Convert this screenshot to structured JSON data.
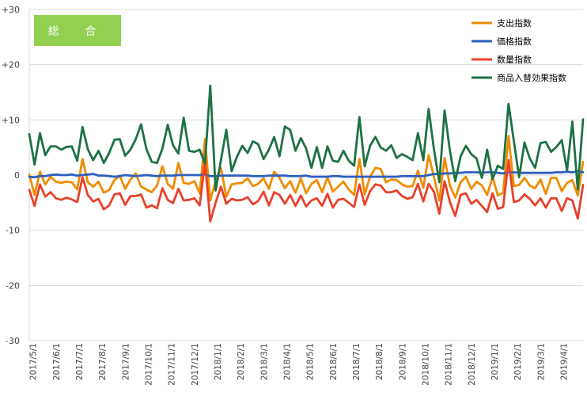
{
  "chart_data": {
    "type": "line",
    "badge": {
      "label": "総 合",
      "color": "#92d050"
    },
    "ylim": [
      -30,
      30
    ],
    "yticks": [
      {
        "value": 30,
        "label": "+30"
      },
      {
        "value": 20,
        "label": "+20"
      },
      {
        "value": 10,
        "label": "+10"
      },
      {
        "value": 0,
        "label": "0"
      },
      {
        "value": -10,
        "label": "-10"
      },
      {
        "value": -20,
        "label": "-20"
      },
      {
        "value": -30,
        "label": "-30"
      }
    ],
    "grid": true,
    "legend_position": "top-right",
    "x_tick_labels": [
      "2017/5/1",
      "2017/6/1",
      "2017/7/1",
      "2017/8/1",
      "2017/9/1",
      "2017/10/1",
      "2017/11/1",
      "2017/12/1",
      "2018/1/1",
      "2018/2/1",
      "2018/3/1",
      "2018/4/1",
      "2018/5/1",
      "2018/6/1",
      "2018/7/1",
      "2018/8/1",
      "2018/9/1",
      "2018/10/1",
      "2018/11/1",
      "2018/12/1",
      "2019/1/1",
      "2019/2/1",
      "2019/3/1",
      "2019/4/1"
    ],
    "series": [
      {
        "name": "支出指数",
        "color": "#f08c00",
        "values": [
          0.1,
          -3.6,
          0.6,
          -1.7,
          -0.3,
          -1.2,
          -1.4,
          -1.2,
          -1.3,
          -2.6,
          2.9,
          -1.3,
          -2.1,
          -1.2,
          -3.2,
          -2.7,
          -0.9,
          -0.1,
          -2.5,
          -0.8,
          0.3,
          -2.1,
          -2.6,
          -3.1,
          -1.9,
          1.6,
          -1.6,
          -2.5,
          2.2,
          -1.4,
          -1.6,
          -1.1,
          -3.3,
          6.5,
          -4.6,
          -1.1,
          1.3,
          -3.9,
          -1.7,
          -1.5,
          -1.4,
          -0.6,
          -2.0,
          -1.6,
          -0.6,
          -2.5,
          0.6,
          -0.5,
          -2.4,
          -1.1,
          -3.2,
          -0.6,
          -3.3,
          -1.6,
          -0.9,
          -3.1,
          -0.4,
          -3.0,
          -2.1,
          -1.2,
          -2.6,
          -3.6,
          2.9,
          -3.5,
          -0.3,
          1.3,
          1.1,
          -1.3,
          -0.8,
          -0.9,
          -1.7,
          -2.1,
          -2.0,
          0.8,
          -2.3,
          3.6,
          -0.3,
          -4.6,
          3.1,
          -1.9,
          -4.1,
          -1.3,
          -0.3,
          -2.5,
          -1.2,
          -1.9,
          -3.6,
          -0.3,
          -3.7,
          -3.2,
          7.1,
          -2.0,
          -1.8,
          -0.5,
          -1.9,
          -2.4,
          -0.8,
          -3.4,
          -0.5,
          -0.5,
          -2.9,
          -1.4,
          -0.9,
          -3.7,
          2.4
        ]
      },
      {
        "name": "価格指数",
        "color": "#2e5fbf",
        "values": [
          -0.3,
          -0.4,
          -0.2,
          -0.2,
          0.0,
          0.1,
          0.0,
          0.0,
          0.1,
          -0.1,
          0.0,
          0.1,
          0.2,
          -0.1,
          -0.1,
          -0.2,
          -0.3,
          -0.2,
          0.0,
          -0.1,
          -0.2,
          -0.1,
          0.0,
          -0.1,
          -0.2,
          -0.1,
          -0.1,
          -0.1,
          0.0,
          0.0,
          0.0,
          0.0,
          0.0,
          0.1,
          -0.2,
          -0.2,
          -0.1,
          -0.1,
          -0.1,
          -0.1,
          -0.1,
          -0.1,
          -0.2,
          -0.2,
          -0.2,
          -0.1,
          -0.1,
          -0.1,
          -0.1,
          -0.2,
          -0.2,
          -0.2,
          -0.1,
          -0.3,
          -0.3,
          -0.3,
          -0.3,
          -0.2,
          -0.2,
          -0.3,
          -0.3,
          -0.3,
          -0.3,
          -0.3,
          -0.3,
          -0.3,
          -0.3,
          -0.3,
          -0.3,
          -0.3,
          -0.2,
          -0.2,
          -0.2,
          -0.2,
          -0.2,
          0.0,
          0.2,
          0.2,
          0.3,
          0.3,
          0.4,
          0.4,
          0.5,
          0.5,
          0.5,
          0.4,
          0.5,
          0.5,
          0.4,
          0.3,
          0.5,
          0.5,
          0.4,
          0.4,
          0.4,
          0.4,
          0.4,
          0.4,
          0.4,
          0.5,
          0.5,
          0.6,
          0.5,
          0.7,
          0.5
        ]
      },
      {
        "name": "数量指数",
        "color": "#e8412b",
        "values": [
          -2.7,
          -5.6,
          -1.7,
          -3.9,
          -3.1,
          -4.2,
          -4.5,
          -4.1,
          -4.4,
          -4.9,
          -0.4,
          -3.6,
          -4.8,
          -4.3,
          -6.2,
          -5.5,
          -3.5,
          -3.3,
          -5.4,
          -3.8,
          -3.8,
          -3.5,
          -5.9,
          -5.5,
          -6.0,
          -2.4,
          -4.5,
          -5.1,
          -2.5,
          -4.6,
          -4.5,
          -4.2,
          -5.5,
          2.3,
          -8.4,
          -5.0,
          -2.1,
          -5.2,
          -4.3,
          -4.6,
          -4.5,
          -4.0,
          -5.3,
          -4.7,
          -3.0,
          -5.5,
          -3.1,
          -3.6,
          -5.2,
          -3.6,
          -5.6,
          -3.7,
          -5.7,
          -4.6,
          -4.2,
          -5.6,
          -3.4,
          -5.9,
          -4.5,
          -4.3,
          -5.0,
          -5.8,
          -1.7,
          -5.4,
          -2.9,
          -1.7,
          -1.9,
          -3.1,
          -3.1,
          -2.8,
          -3.8,
          -4.3,
          -4.0,
          -1.6,
          -4.8,
          -1.6,
          -3.0,
          -7.0,
          -1.1,
          -4.9,
          -7.4,
          -3.6,
          -3.3,
          -5.2,
          -4.5,
          -5.6,
          -6.7,
          -3.3,
          -6.1,
          -5.8,
          2.7,
          -4.9,
          -4.6,
          -3.5,
          -4.3,
          -5.5,
          -4.2,
          -5.9,
          -4.2,
          -4.2,
          -6.5,
          -4.2,
          -4.6,
          -7.9,
          -1.8
        ]
      },
      {
        "name": "商品入替効果指数",
        "color": "#1e7145",
        "values": [
          7.4,
          1.9,
          7.6,
          3.6,
          5.2,
          5.2,
          4.6,
          5.1,
          5.2,
          2.6,
          8.7,
          4.7,
          2.7,
          4.4,
          2.2,
          4.0,
          6.4,
          6.5,
          3.5,
          4.6,
          6.5,
          9.2,
          4.7,
          2.4,
          2.2,
          4.8,
          9.1,
          5.4,
          3.9,
          10.4,
          4.4,
          4.2,
          4.6,
          2.1,
          16.2,
          -2.8,
          2.7,
          8.2,
          0.7,
          3.3,
          5.3,
          4.0,
          6.1,
          5.6,
          2.9,
          4.6,
          6.9,
          3.4,
          8.8,
          8.2,
          4.4,
          6.7,
          4.8,
          1.3,
          5.1,
          1.3,
          5.2,
          2.6,
          2.4,
          4.4,
          2.6,
          1.7,
          10.5,
          1.6,
          5.3,
          6.9,
          5.0,
          4.4,
          5.4,
          3.1,
          3.8,
          3.3,
          2.7,
          7.6,
          2.7,
          12.0,
          4.7,
          -1.3,
          11.7,
          4.4,
          -1.1,
          3.4,
          5.3,
          3.8,
          3.0,
          -0.5,
          4.6,
          -0.7,
          1.7,
          1.1,
          12.9,
          6.2,
          -0.4,
          5.9,
          3.0,
          1.3,
          5.8,
          6.0,
          4.2,
          5.1,
          6.3,
          0.8,
          9.7,
          -2.6,
          10.1
        ]
      }
    ]
  }
}
